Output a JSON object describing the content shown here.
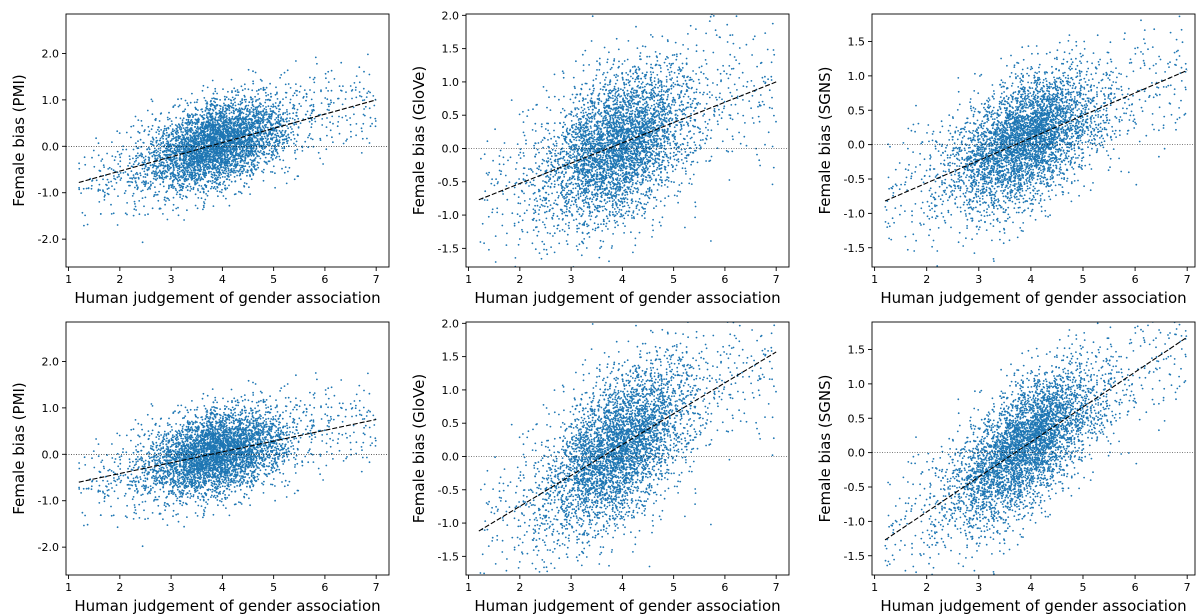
{
  "figure": {
    "dot_color": "#1f77b4",
    "fit_color": "#000000",
    "zero_line_color": "#000000"
  },
  "chart_data": [
    {
      "type": "scatter",
      "xlabel": "Human judgement of gender association",
      "ylabel": "Female bias (PMI)",
      "xlim": [
        0.95,
        7.25
      ],
      "ylim": [
        -2.6,
        2.85
      ],
      "xticks": [
        1,
        2,
        3,
        4,
        5,
        6,
        7
      ],
      "yticks": [
        -2.0,
        -1.0,
        0.0,
        1.0,
        2.0
      ],
      "ytick_labels": [
        "-2.0",
        "-1.0",
        "0.0",
        "1.0",
        "2.0"
      ],
      "fit_line": {
        "x": [
          1.2,
          7.0
        ],
        "y": [
          -0.78,
          1.0
        ]
      },
      "reference_line_y": 0,
      "grid": false,
      "n_points_approx": 4500,
      "cloud": {
        "x_center": 3.9,
        "x_spread": 0.7,
        "y_spread": 0.45
      }
    },
    {
      "type": "scatter",
      "xlabel": "Human judgement of gender association",
      "ylabel": "Female bias (GloVe)",
      "xlim": [
        0.95,
        7.25
      ],
      "ylim": [
        -1.78,
        2.02
      ],
      "xticks": [
        1,
        2,
        3,
        4,
        5,
        6,
        7
      ],
      "yticks": [
        -1.5,
        -1.0,
        -0.5,
        0.0,
        0.5,
        1.0,
        1.5,
        2.0
      ],
      "ytick_labels": [
        "-1.5",
        "-1.0",
        "-0.5",
        "0.0",
        "0.5",
        "1.0",
        "1.5",
        "2.0"
      ],
      "fit_line": {
        "x": [
          1.2,
          7.0
        ],
        "y": [
          -0.77,
          1.0
        ]
      },
      "reference_line_y": 0,
      "grid": false,
      "n_points_approx": 4500,
      "cloud": {
        "x_center": 3.9,
        "x_spread": 0.7,
        "y_spread": 0.55
      }
    },
    {
      "type": "scatter",
      "xlabel": "Human judgement of gender association",
      "ylabel": "Female bias (SGNS)",
      "xlim": [
        0.95,
        7.15
      ],
      "ylim": [
        -1.78,
        1.9
      ],
      "xticks": [
        1,
        2,
        3,
        4,
        5,
        6,
        7
      ],
      "yticks": [
        -1.5,
        -1.0,
        -0.5,
        0.0,
        0.5,
        1.0,
        1.5
      ],
      "ytick_labels": [
        "-1.5",
        "-1.0",
        "-0.5",
        "0.0",
        "0.5",
        "1.0",
        "1.5"
      ],
      "fit_line": {
        "x": [
          1.2,
          7.0
        ],
        "y": [
          -0.82,
          1.08
        ]
      },
      "reference_line_y": 0,
      "grid": false,
      "n_points_approx": 4500,
      "cloud": {
        "x_center": 3.9,
        "x_spread": 0.7,
        "y_spread": 0.45
      }
    },
    {
      "type": "scatter",
      "xlabel": "Human judgement of gender association",
      "ylabel": "Female bias (PMI)",
      "xlim": [
        0.95,
        7.25
      ],
      "ylim": [
        -2.6,
        2.85
      ],
      "xticks": [
        1,
        2,
        3,
        4,
        5,
        6,
        7
      ],
      "yticks": [
        -2.0,
        -1.0,
        0.0,
        1.0,
        2.0
      ],
      "ytick_labels": [
        "-2.0",
        "-1.0",
        "0.0",
        "1.0",
        "2.0"
      ],
      "fit_line": {
        "x": [
          1.2,
          7.0
        ],
        "y": [
          -0.6,
          0.75
        ]
      },
      "reference_line_y": 0,
      "grid": false,
      "n_points_approx": 4500,
      "cloud": {
        "x_center": 3.9,
        "x_spread": 0.7,
        "y_spread": 0.45
      }
    },
    {
      "type": "scatter",
      "xlabel": "Human judgement of gender association",
      "ylabel": "Female bias (GloVe)",
      "xlim": [
        0.95,
        7.25
      ],
      "ylim": [
        -1.78,
        2.02
      ],
      "xticks": [
        1,
        2,
        3,
        4,
        5,
        6,
        7
      ],
      "yticks": [
        -1.5,
        -1.0,
        -0.5,
        0.0,
        0.5,
        1.0,
        1.5,
        2.0
      ],
      "ytick_labels": [
        "-1.5",
        "-1.0",
        "-0.5",
        "0.0",
        "0.5",
        "1.0",
        "1.5",
        "2.0"
      ],
      "fit_line": {
        "x": [
          1.2,
          7.0
        ],
        "y": [
          -1.12,
          1.57
        ]
      },
      "reference_line_y": 0,
      "grid": false,
      "n_points_approx": 4500,
      "cloud": {
        "x_center": 3.9,
        "x_spread": 0.7,
        "y_spread": 0.55
      }
    },
    {
      "type": "scatter",
      "xlabel": "Human judgement of gender association",
      "ylabel": "Female bias (SGNS)",
      "xlim": [
        0.95,
        7.15
      ],
      "ylim": [
        -1.78,
        1.9
      ],
      "xticks": [
        1,
        2,
        3,
        4,
        5,
        6,
        7
      ],
      "yticks": [
        -1.5,
        -1.0,
        -0.5,
        0.0,
        0.5,
        1.0,
        1.5
      ],
      "ytick_labels": [
        "-1.5",
        "-1.0",
        "-0.5",
        "0.0",
        "0.5",
        "1.0",
        "1.5"
      ],
      "fit_line": {
        "x": [
          1.2,
          7.0
        ],
        "y": [
          -1.27,
          1.68
        ]
      },
      "reference_line_y": 0,
      "grid": false,
      "n_points_approx": 4500,
      "cloud": {
        "x_center": 3.9,
        "x_spread": 0.7,
        "y_spread": 0.45
      }
    }
  ]
}
